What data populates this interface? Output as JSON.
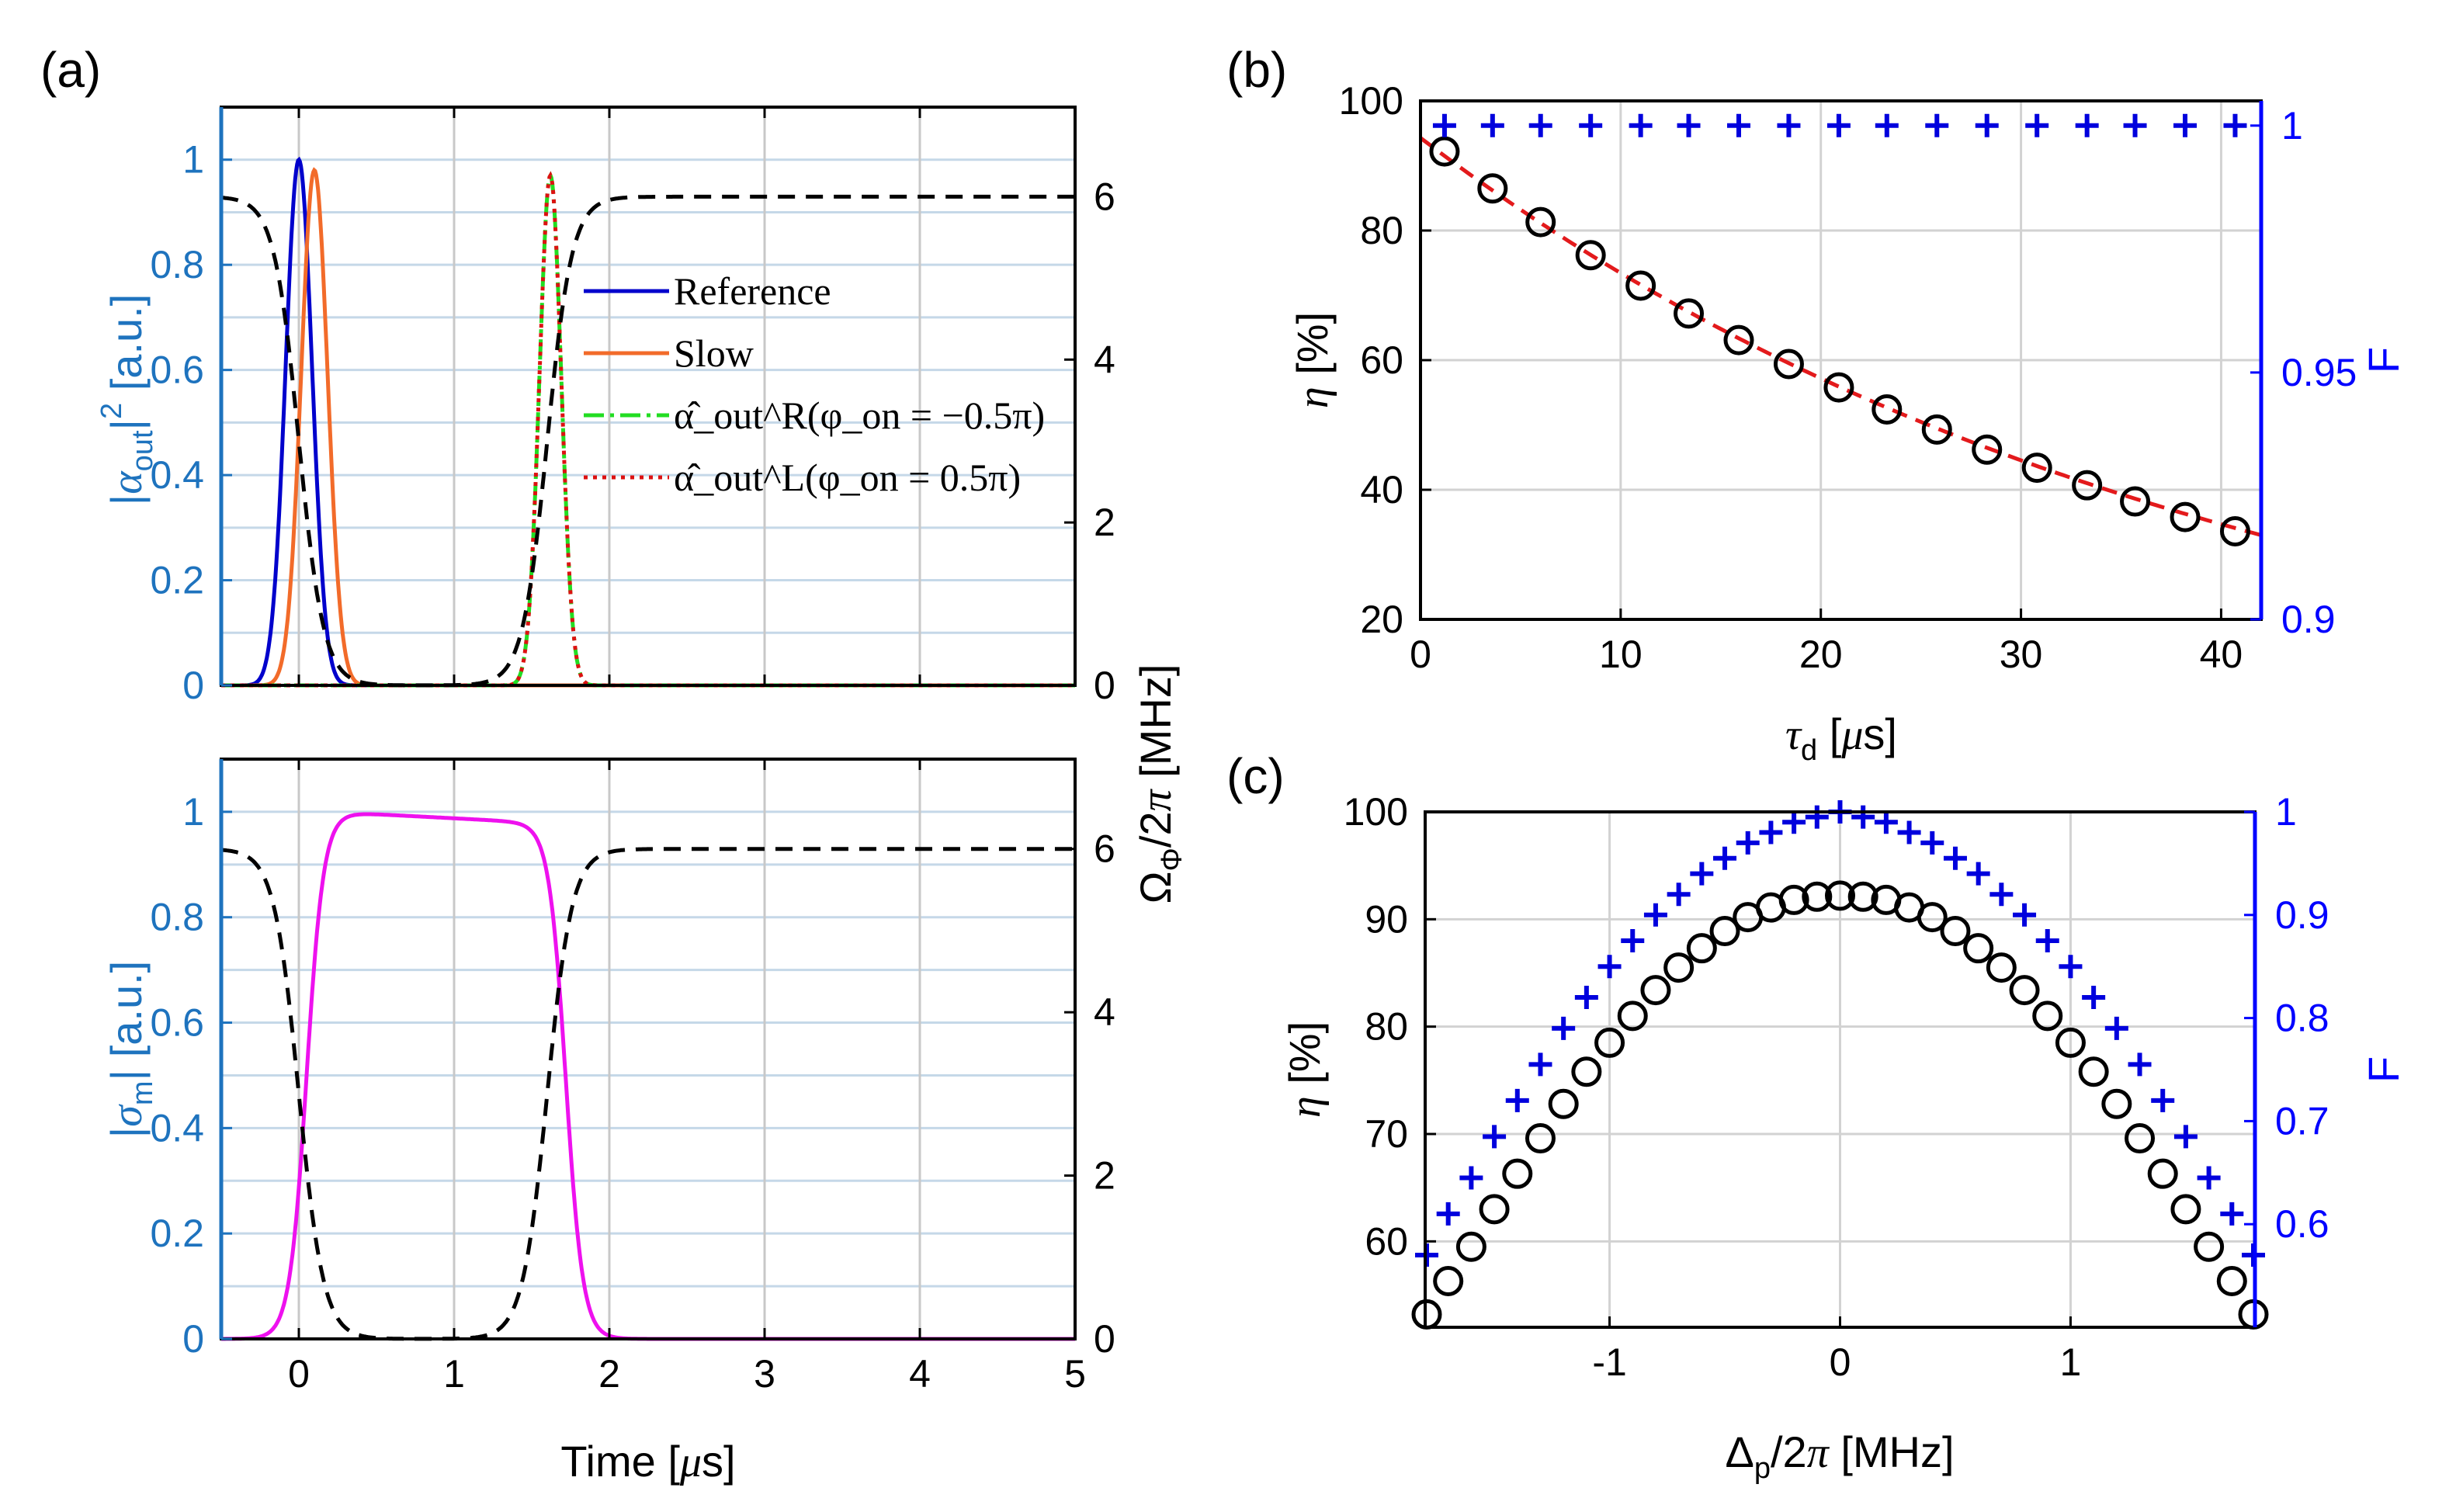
{
  "colors": {
    "axis_left_a": "#1E73BE",
    "axis_right_bc": "#0000FF",
    "reference": "#0000CC",
    "slow": "#F26B2A",
    "r_out": "#22DD22",
    "l_out": "#DD1111",
    "sigma": "#EE11EE",
    "control": "#000000",
    "fit": "#E31A1C",
    "markers_eta": "#000000",
    "markers_F": "#0000DD",
    "grid": "#B0C8DC"
  },
  "panel_labels": {
    "a": "(a)",
    "b": "(b)",
    "c": "(c)"
  },
  "shared": {
    "x_label": "Time [μs]",
    "right_label": "Ω_Φ/2π [MHz]"
  },
  "chart_data": [
    {
      "id": "a-top",
      "type": "line",
      "xlim": [
        -0.5,
        5
      ],
      "ylim": [
        0,
        1.1
      ],
      "y2lim": [
        0,
        7.1
      ],
      "x_ticks": [
        "0",
        "1",
        "2",
        "3",
        "4",
        "5"
      ],
      "y_ticks": [
        "0",
        "0.2",
        "0.4",
        "0.6",
        "0.8",
        "1"
      ],
      "y2_ticks": [
        "0",
        "2",
        "4",
        "6"
      ],
      "ylabel": "|α_out|² [a.u.]",
      "legend": [
        "Reference",
        "Slow",
        "α̂_out^R(φ_on = −0.5π)",
        "α̂_out^L(φ_on = 0.5π)"
      ],
      "legend_position": "center",
      "series": [
        {
          "name": "Reference",
          "shape": "gaussian",
          "center": 0.0,
          "sigma": 0.085,
          "peak": 1.0
        },
        {
          "name": "Slow",
          "shape": "gaussian",
          "center": 0.1,
          "sigma": 0.085,
          "peak": 0.98
        },
        {
          "name": "R output",
          "shape": "gaussian",
          "center": 1.62,
          "sigma": 0.07,
          "peak": 0.97
        },
        {
          "name": "L output",
          "shape": "gaussian",
          "center": 1.62,
          "sigma": 0.07,
          "peak": 0.97
        },
        {
          "name": "Control Ω_Φ (right axis)",
          "shape": "control",
          "high_MHz": 6.0,
          "off_start": 0.0,
          "off_end": 1.6,
          "edge_width": 0.08
        }
      ]
    },
    {
      "id": "a-bottom",
      "type": "line",
      "xlim": [
        -0.5,
        5
      ],
      "ylim": [
        0,
        1.1
      ],
      "y2lim": [
        0,
        7.1
      ],
      "x_ticks": [
        "0",
        "1",
        "2",
        "3",
        "4",
        "5"
      ],
      "y_ticks": [
        "0",
        "0.2",
        "0.4",
        "0.6",
        "0.8",
        "1"
      ],
      "y2_ticks": [
        "0",
        "2",
        "4",
        "6"
      ],
      "xlabel": "Time [μs]",
      "ylabel": "|σ_m| [a.u.]",
      "series": [
        {
          "name": "Spin-wave |σ_m|",
          "shape": "storage",
          "rise_center": 0.05,
          "fall_center": 1.72,
          "width": 0.055,
          "level_start": 1.0,
          "level_end": 0.98
        },
        {
          "name": "Control Ω_Φ (right axis)",
          "shape": "control",
          "high_MHz": 6.0,
          "off_start": 0.0,
          "off_end": 1.6,
          "edge_width": 0.08
        }
      ]
    },
    {
      "id": "b",
      "type": "scatter",
      "xlim": [
        0,
        42
      ],
      "ylim": [
        20,
        100
      ],
      "y2lim": [
        0.9,
        1.005
      ],
      "x_ticks": [
        "0",
        "10",
        "20",
        "30",
        "40"
      ],
      "y_ticks": [
        "20",
        "40",
        "60",
        "80",
        "100"
      ],
      "y2_ticks": [
        "0.9",
        "0.95",
        "1"
      ],
      "xlabel": "τ_d [μs]",
      "ylabel": "η [%]",
      "y2label": "F",
      "x": [
        1.2,
        3.6,
        6.0,
        8.5,
        11.0,
        13.4,
        15.9,
        18.4,
        20.9,
        23.3,
        25.8,
        28.3,
        30.8,
        33.3,
        35.7,
        38.2,
        40.7
      ],
      "eta": [
        92.2,
        86.5,
        81.3,
        76.2,
        71.5,
        67.2,
        63.1,
        59.4,
        55.8,
        52.4,
        49.3,
        46.2,
        43.4,
        40.7,
        38.2,
        35.8,
        33.6
      ],
      "F": [
        1,
        1,
        1,
        1,
        1,
        1,
        1,
        1,
        1,
        1,
        1,
        1,
        1,
        1,
        1,
        1,
        1
      ],
      "fit": {
        "type": "exponential",
        "A": 94.3,
        "tau_us": 40.0
      }
    },
    {
      "id": "c",
      "type": "scatter",
      "xlim": [
        -1.8,
        1.8
      ],
      "ylim": [
        52,
        100
      ],
      "y2lim": [
        0.5,
        1.0
      ],
      "x_ticks": [
        "-1",
        "0",
        "1"
      ],
      "y_ticks": [
        "60",
        "70",
        "80",
        "90",
        "100"
      ],
      "y2_ticks": [
        "0.6",
        "0.7",
        "0.8",
        "0.9",
        "1"
      ],
      "xlabel": "Δ_p/2π [MHz]",
      "ylabel": "η [%]",
      "y2label": "F",
      "x": [
        -1.8,
        -1.7,
        -1.6,
        -1.5,
        -1.4,
        -1.3,
        -1.2,
        -1.1,
        -1.0,
        -0.9,
        -0.8,
        -0.7,
        -0.6,
        -0.5,
        -0.4,
        -0.3,
        -0.2,
        -0.1,
        0.0,
        0.1,
        0.2,
        0.3,
        0.4,
        0.5,
        0.6,
        0.7,
        0.8,
        0.9,
        1.0,
        1.1,
        1.2,
        1.3,
        1.4,
        1.5,
        1.6,
        1.7,
        1.8
      ],
      "eta": [
        53.2,
        56.3,
        59.5,
        63.0,
        66.3,
        69.6,
        72.8,
        75.8,
        78.5,
        81.0,
        83.4,
        85.5,
        87.3,
        88.9,
        90.2,
        91.1,
        91.8,
        92.1,
        92.2,
        92.1,
        91.8,
        91.1,
        90.2,
        88.9,
        87.3,
        85.5,
        83.4,
        81.0,
        78.5,
        75.8,
        72.8,
        69.6,
        66.3,
        63.0,
        59.5,
        56.3,
        53.2
      ],
      "F": [
        0.57,
        0.61,
        0.645,
        0.685,
        0.72,
        0.755,
        0.79,
        0.82,
        0.85,
        0.875,
        0.9,
        0.92,
        0.94,
        0.955,
        0.97,
        0.98,
        0.99,
        0.995,
        1.0,
        0.995,
        0.99,
        0.98,
        0.97,
        0.955,
        0.94,
        0.92,
        0.9,
        0.875,
        0.85,
        0.82,
        0.79,
        0.755,
        0.72,
        0.685,
        0.645,
        0.61,
        0.57
      ]
    }
  ]
}
